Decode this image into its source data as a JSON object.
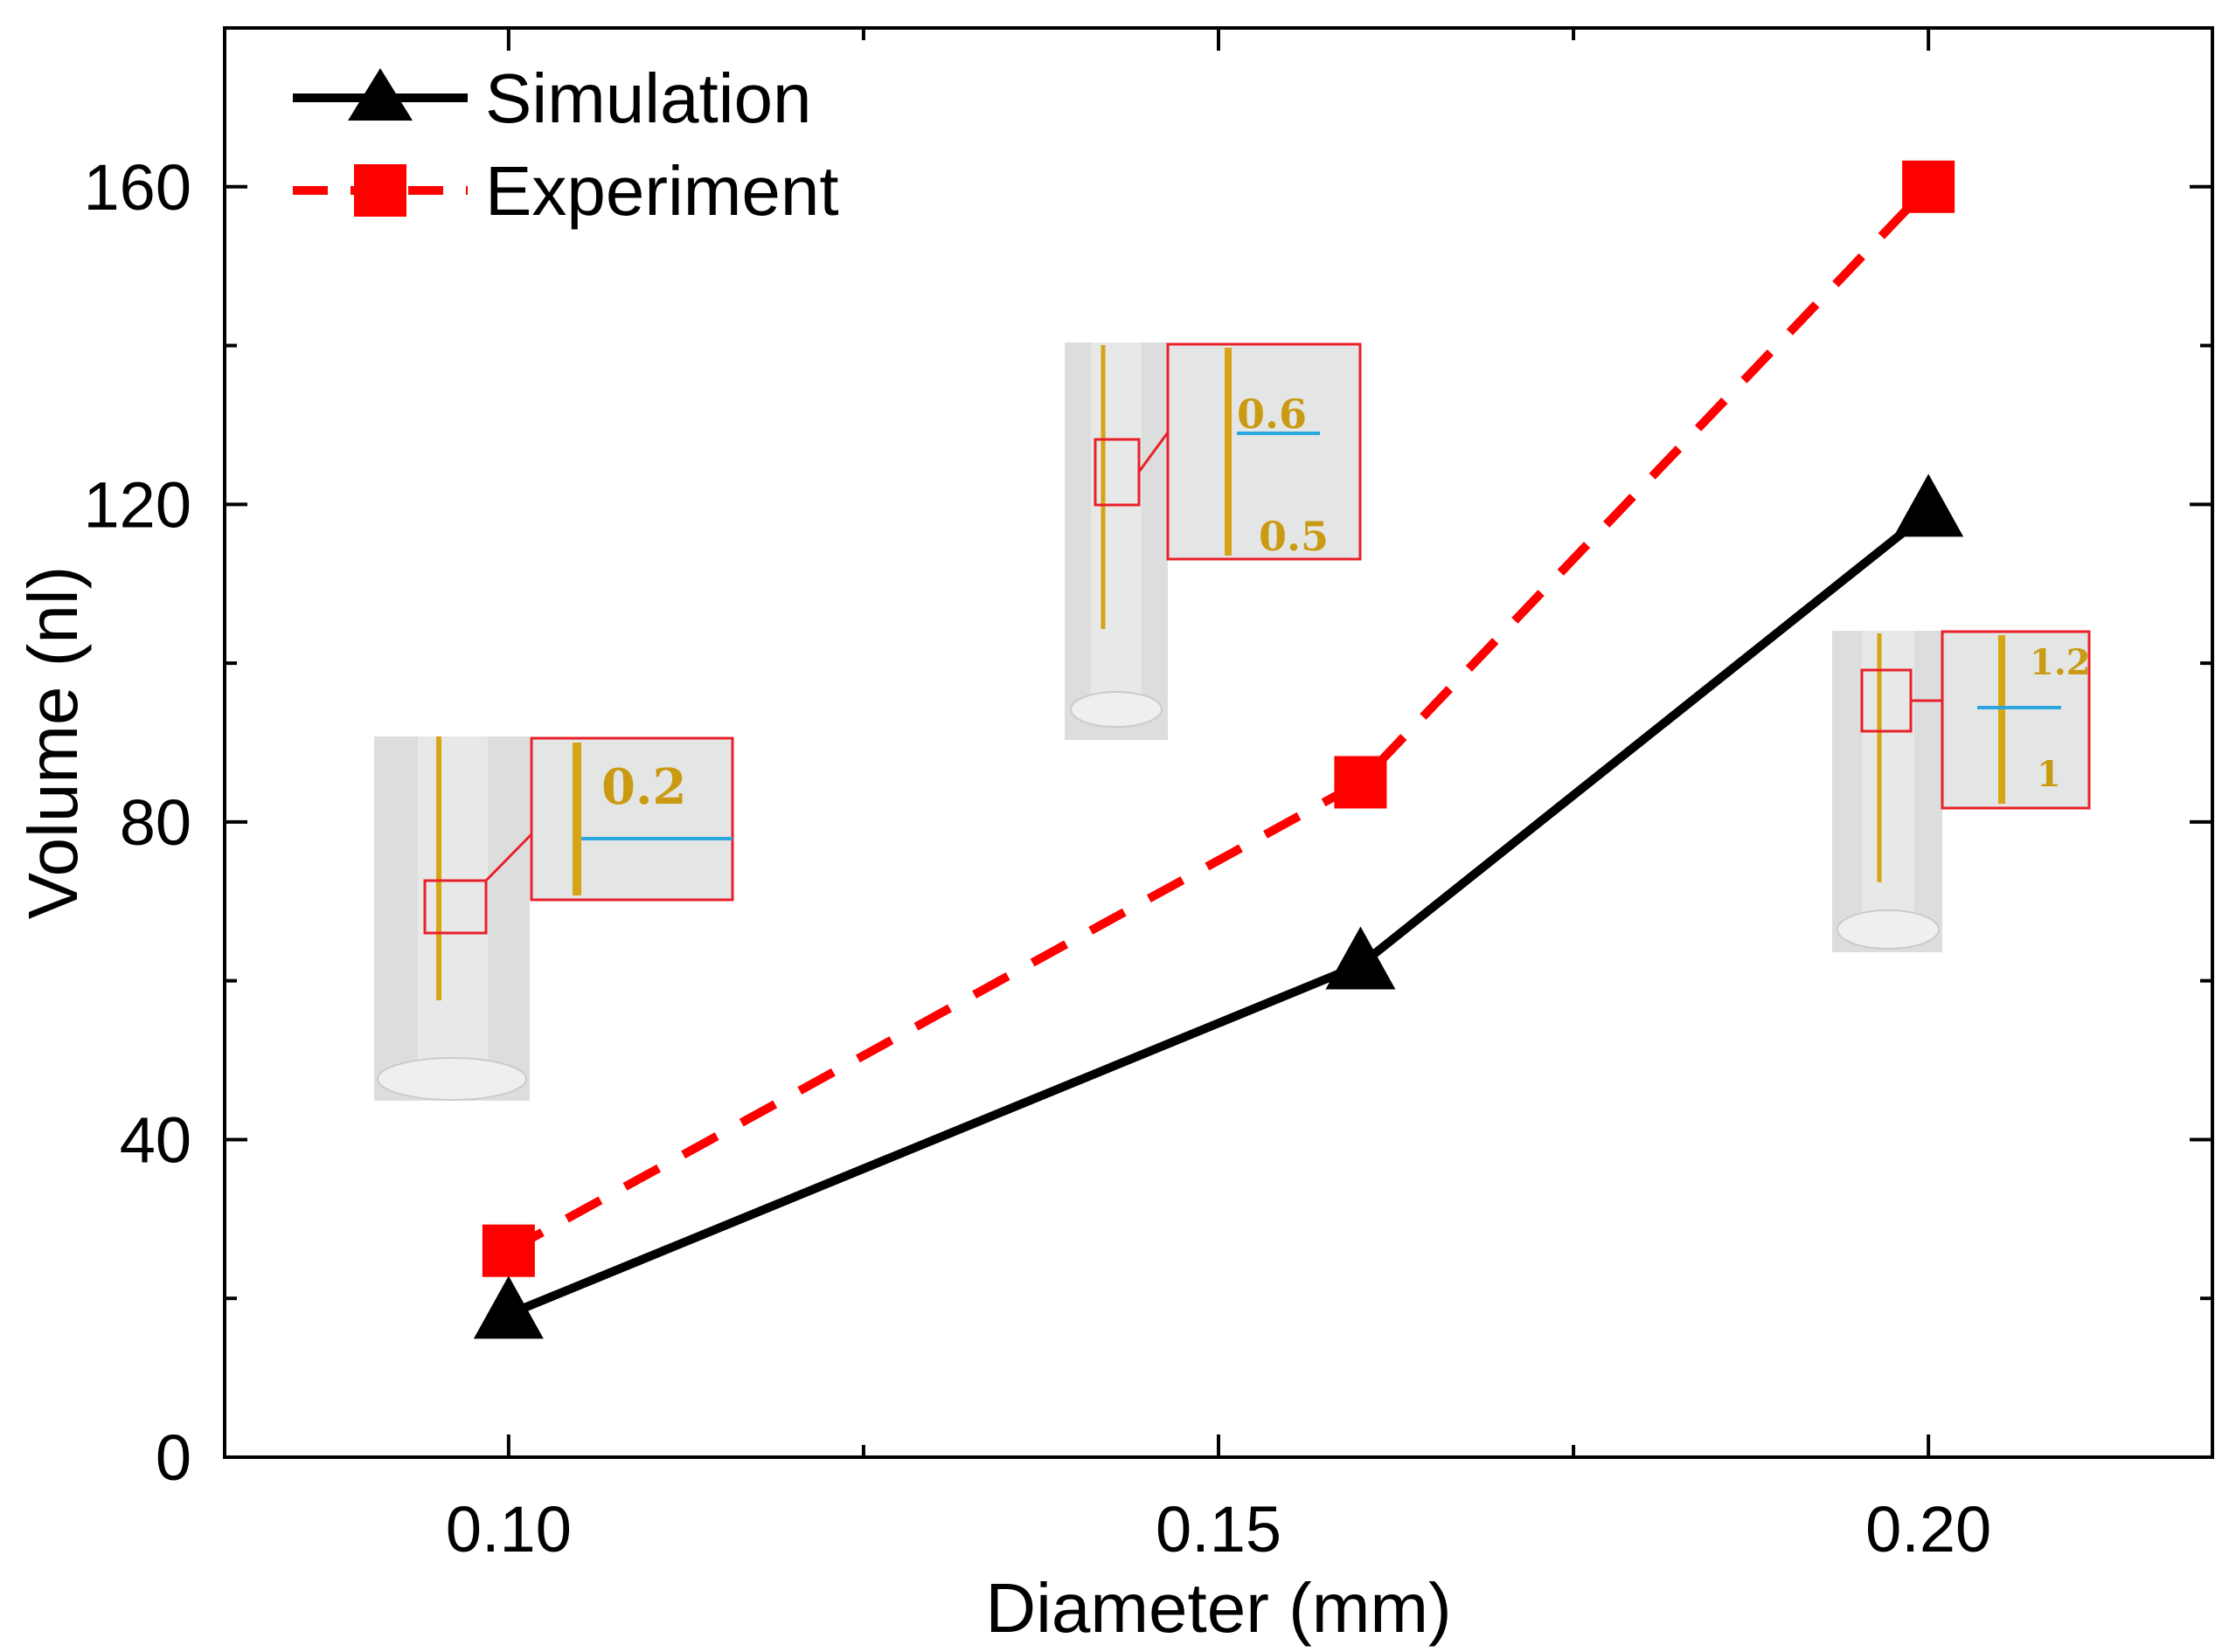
{
  "chart_data": {
    "type": "line",
    "xlabel": "Diameter (mm)",
    "ylabel": "Volume (nl)",
    "xlim": [
      0.08,
      0.22
    ],
    "ylim": [
      0,
      180
    ],
    "xticks": [
      0.1,
      0.15,
      0.2
    ],
    "xtick_labels": [
      "0.10",
      "0.15",
      "0.20"
    ],
    "yticks": [
      0,
      40,
      80,
      120,
      160
    ],
    "ytick_labels": [
      "0",
      "40",
      "80",
      "120",
      "160"
    ],
    "grid": false,
    "legend_position": "top-left",
    "series": [
      {
        "name": "Simulation",
        "x": [
          0.1,
          0.16,
          0.2
        ],
        "values": [
          18,
          62,
          119
        ],
        "color": "#000000",
        "marker": "triangle",
        "linestyle": "solid"
      },
      {
        "name": "Experiment",
        "x": [
          0.1,
          0.16,
          0.2
        ],
        "values": [
          26,
          85,
          160
        ],
        "color": "#ff0000",
        "marker": "square",
        "linestyle": "dashed"
      }
    ],
    "insets": [
      {
        "name": "cylinder-0-10",
        "zoom_label": "0.2"
      },
      {
        "name": "cylinder-0-16",
        "zoom_label": "0.6",
        "zoom_label_2": "0.5"
      },
      {
        "name": "cylinder-0-20",
        "zoom_label": "1.2",
        "zoom_label_2": "1"
      }
    ]
  }
}
